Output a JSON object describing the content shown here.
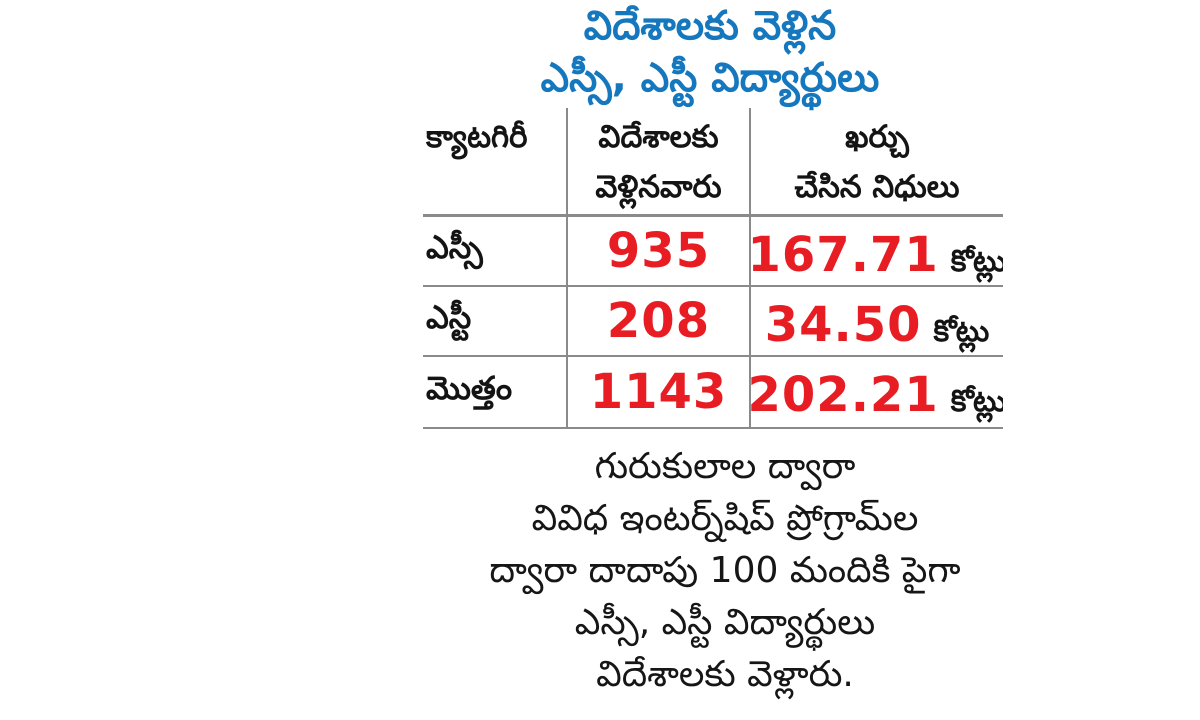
{
  "chart_data": {
    "type": "table",
    "title": "విదేశాలకు వెళ్లిన ఎస్సీ, ఎస్టీ విద్యార్థులు",
    "columns": [
      "క్యాటగిరీ",
      "విదేశాలకు వెళ్లినవారు",
      "ఖర్చు చేసిన నిధులు"
    ],
    "rows": [
      [
        "ఎస్సీ",
        935,
        "167.71 కోట్లు"
      ],
      [
        "ఎస్టీ",
        208,
        "34.50 కోట్లు"
      ],
      [
        "మొత్తం",
        1143,
        "202.21 కోట్లు"
      ]
    ],
    "note": "గురుకులాల ద్వారా వివిధ ఇంటర్న్‌షిప్ ప్రోగ్రామ్‌ల ద్వారా దాదాపు 100 మందికి పైగా ఎస్సీ, ఎస్టీ విద్యార్థులు విదేశాలకు వెళ్లారు."
  },
  "title": {
    "line1": "విదేశాలకు వెళ్లిన",
    "line2": "ఎస్సీ, ఎస్టీ విద్యార్థులు"
  },
  "table": {
    "header": {
      "category": "క్యాటగిరీ",
      "abroad_line1": "విదేశాలకు",
      "abroad_line2": "వెళ్లినవారు",
      "funds_line1": "ఖర్చు",
      "funds_line2": "చేసిన నిధులు"
    },
    "rows": [
      {
        "category": "ఎస్సీ",
        "count": "935",
        "funds": "167.71",
        "unit": "కోట్లు"
      },
      {
        "category": "ఎస్టీ",
        "count": "208",
        "funds": "34.50",
        "unit": "కోట్లు"
      },
      {
        "category": "మొత్తం",
        "count": "1143",
        "funds": "202.21",
        "unit": "కోట్లు"
      }
    ]
  },
  "note": {
    "lines": [
      "గురుకులాల ద్వారా",
      "వివిధ ఇంటర్న్‌షిప్ ప్రోగ్రామ్‌ల",
      "ద్వారా దాదాపు 100 మందికి పైగా",
      "ఎస్సీ, ఎస్టీ విద్యార్థులు",
      "విదేశాలకు వెళ్లారు."
    ]
  },
  "colors": {
    "title_blue": "#1577bd",
    "number_red": "#e71d23",
    "text_black": "#141414",
    "line_gray": "#8a8a8a"
  }
}
